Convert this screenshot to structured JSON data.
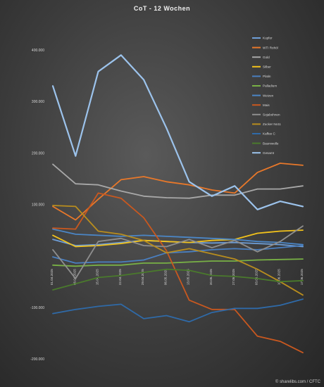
{
  "chart_data": {
    "type": "line",
    "title": "CoT - 12 Wochen",
    "credit": "© sharelibs.com / CFTC",
    "ylim": [
      -200000,
      400000
    ],
    "yticks": [
      400000,
      300000,
      200000,
      100000,
      -100000,
      -200000
    ],
    "ytick_labels": [
      "400.000",
      "300.000",
      "200.000",
      "100.000",
      "-100.000",
      "-200.000"
    ],
    "x": [
      "01.04.2025",
      "08.04.2025",
      "15.04.2025",
      "22.04.2025",
      "29.04.2025",
      "06.05.2025",
      "13.05.2025",
      "20.05.2025",
      "27.05.2025",
      "03.06.2025",
      "10.06.2025",
      "17.06.2025"
    ],
    "series": [
      {
        "name": "Kupfer",
        "color": "#6f9fd8",
        "values": [
          32000,
          20000,
          22000,
          26000,
          30000,
          28000,
          26000,
          25000,
          26000,
          24000,
          22000,
          18000
        ]
      },
      {
        "name": "WTI Rohöl",
        "color": "#e8782a",
        "values": [
          96000,
          70000,
          110000,
          148000,
          154000,
          144000,
          138000,
          128000,
          122000,
          162000,
          180000,
          176000
        ]
      },
      {
        "name": "Gold",
        "color": "#a8a8a8",
        "values": [
          178000,
          140000,
          138000,
          126000,
          116000,
          113000,
          112000,
          118000,
          118000,
          130000,
          130000,
          136000
        ]
      },
      {
        "name": "Silber",
        "color": "#f2c21b",
        "values": [
          40000,
          18000,
          20000,
          24000,
          30000,
          28000,
          26000,
          30000,
          32000,
          44000,
          48000,
          50000
        ]
      },
      {
        "name": "Platin",
        "color": "#4a7fc0",
        "values": [
          -2000,
          -14000,
          -12000,
          -12000,
          -8000,
          6000,
          8000,
          12000,
          14000,
          12000,
          16000,
          20000
        ]
      },
      {
        "name": "Palladium",
        "color": "#78b045",
        "values": [
          -18000,
          -20000,
          -18000,
          -18000,
          -14000,
          -14000,
          -12000,
          -10000,
          -10000,
          -8000,
          -7000,
          -6000
        ]
      },
      {
        "name": "Weizen",
        "color": "#4b86c6",
        "values": [
          52000,
          42000,
          40000,
          38000,
          40000,
          38000,
          36000,
          34000,
          32000,
          28000,
          26000,
          22000
        ]
      },
      {
        "name": "Mais",
        "color": "#c9581f",
        "values": [
          54000,
          52000,
          122000,
          112000,
          74000,
          10000,
          -86000,
          -104000,
          -104000,
          -156000,
          -166000,
          -188000
        ]
      },
      {
        "name": "Sojabohnen",
        "color": "#8e8e8e",
        "values": [
          12000,
          -44000,
          28000,
          34000,
          20000,
          18000,
          32000,
          16000,
          30000,
          8000,
          28000,
          58000
        ]
      },
      {
        "name": "Zucker No11",
        "color": "#b88d1e",
        "values": [
          98000,
          96000,
          48000,
          42000,
          30000,
          6000,
          14000,
          4000,
          -6000,
          -26000,
          -50000,
          -76000
        ]
      },
      {
        "name": "Kaffee C",
        "color": "#2f6aa8",
        "values": [
          -112000,
          -104000,
          -98000,
          -94000,
          -122000,
          -116000,
          -128000,
          -110000,
          -102000,
          -102000,
          -96000,
          -84000
        ]
      },
      {
        "name": "Baumwolle",
        "color": "#4a7a2c",
        "values": [
          -66000,
          -54000,
          -42000,
          -38000,
          -32000,
          -26000,
          -28000,
          -38000,
          -40000,
          -44000,
          -50000,
          -48000
        ]
      },
      {
        "name": "Gesamt",
        "color": "#9cc3ec",
        "values": [
          330000,
          194000,
          358000,
          390000,
          342000,
          248000,
          144000,
          116000,
          136000,
          90000,
          106000,
          96000
        ]
      }
    ]
  }
}
